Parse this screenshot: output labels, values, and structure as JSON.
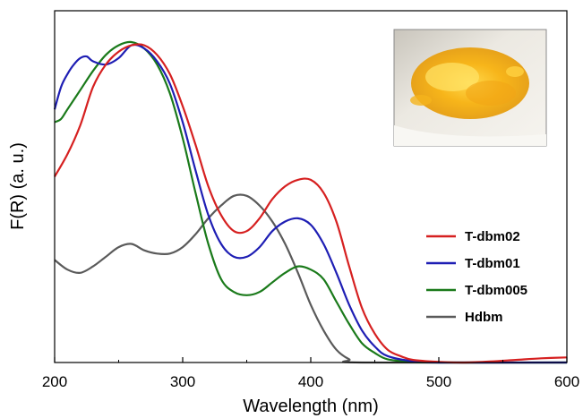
{
  "chart_data": {
    "type": "line",
    "title": "",
    "xlabel": "Wavelength (nm)",
    "ylabel": "F(R)  (a. u.)",
    "xlim": [
      200,
      600
    ],
    "ylim": [
      0,
      1
    ],
    "x_ticks": [
      "200",
      "300",
      "400",
      "500",
      "600"
    ],
    "y_ticks_shown": false,
    "grid": false,
    "legend_position": "right",
    "inset": "photo-of-yellow-crystals",
    "series": [
      {
        "name": "T-dbm02",
        "color": "#d62020",
        "points": [
          [
            200,
            0.58
          ],
          [
            210,
            0.65
          ],
          [
            220,
            0.74
          ],
          [
            230,
            0.86
          ],
          [
            240,
            0.93
          ],
          [
            250,
            0.97
          ],
          [
            260,
            0.99
          ],
          [
            270,
            0.99
          ],
          [
            280,
            0.96
          ],
          [
            290,
            0.9
          ],
          [
            300,
            0.8
          ],
          [
            310,
            0.68
          ],
          [
            320,
            0.55
          ],
          [
            330,
            0.46
          ],
          [
            340,
            0.41
          ],
          [
            350,
            0.41
          ],
          [
            360,
            0.45
          ],
          [
            370,
            0.51
          ],
          [
            380,
            0.55
          ],
          [
            390,
            0.57
          ],
          [
            400,
            0.57
          ],
          [
            410,
            0.53
          ],
          [
            420,
            0.44
          ],
          [
            430,
            0.3
          ],
          [
            440,
            0.17
          ],
          [
            450,
            0.09
          ],
          [
            460,
            0.04
          ],
          [
            470,
            0.02
          ],
          [
            480,
            0.008
          ],
          [
            500,
            0.002
          ],
          [
            520,
            0.0
          ],
          [
            540,
            0.003
          ],
          [
            560,
            0.008
          ],
          [
            580,
            0.013
          ],
          [
            600,
            0.016
          ]
        ]
      },
      {
        "name": "T-dbm01",
        "color": "#1e1eb4",
        "points": [
          [
            200,
            0.79
          ],
          [
            205,
            0.86
          ],
          [
            210,
            0.9
          ],
          [
            215,
            0.93
          ],
          [
            220,
            0.95
          ],
          [
            225,
            0.955
          ],
          [
            230,
            0.94
          ],
          [
            240,
            0.93
          ],
          [
            250,
            0.95
          ],
          [
            260,
            0.99
          ],
          [
            270,
            0.98
          ],
          [
            280,
            0.94
          ],
          [
            290,
            0.87
          ],
          [
            300,
            0.75
          ],
          [
            310,
            0.6
          ],
          [
            320,
            0.46
          ],
          [
            330,
            0.37
          ],
          [
            340,
            0.33
          ],
          [
            350,
            0.33
          ],
          [
            360,
            0.36
          ],
          [
            370,
            0.41
          ],
          [
            380,
            0.44
          ],
          [
            390,
            0.45
          ],
          [
            400,
            0.43
          ],
          [
            410,
            0.37
          ],
          [
            420,
            0.28
          ],
          [
            430,
            0.18
          ],
          [
            440,
            0.1
          ],
          [
            450,
            0.05
          ],
          [
            460,
            0.02
          ],
          [
            480,
            0.004
          ],
          [
            500,
            0.0
          ],
          [
            520,
            0.0
          ],
          [
            600,
            0.0
          ]
        ]
      },
      {
        "name": "T-dbm005",
        "color": "#1a7a1a",
        "points": [
          [
            200,
            0.75
          ],
          [
            205,
            0.76
          ],
          [
            210,
            0.79
          ],
          [
            220,
            0.85
          ],
          [
            230,
            0.91
          ],
          [
            240,
            0.96
          ],
          [
            250,
            0.99
          ],
          [
            260,
            1.0
          ],
          [
            270,
            0.98
          ],
          [
            280,
            0.93
          ],
          [
            290,
            0.84
          ],
          [
            300,
            0.7
          ],
          [
            310,
            0.53
          ],
          [
            320,
            0.37
          ],
          [
            330,
            0.26
          ],
          [
            340,
            0.22
          ],
          [
            350,
            0.21
          ],
          [
            360,
            0.22
          ],
          [
            370,
            0.25
          ],
          [
            380,
            0.28
          ],
          [
            390,
            0.3
          ],
          [
            400,
            0.29
          ],
          [
            410,
            0.26
          ],
          [
            420,
            0.19
          ],
          [
            430,
            0.12
          ],
          [
            440,
            0.06
          ],
          [
            450,
            0.03
          ],
          [
            460,
            0.01
          ],
          [
            480,
            0.002
          ],
          [
            500,
            0.0
          ],
          [
            600,
            0.0
          ]
        ]
      },
      {
        "name": "Hdbm",
        "color": "#5a5a5a",
        "points": [
          [
            200,
            0.32
          ],
          [
            210,
            0.29
          ],
          [
            220,
            0.28
          ],
          [
            230,
            0.3
          ],
          [
            240,
            0.33
          ],
          [
            250,
            0.36
          ],
          [
            260,
            0.37
          ],
          [
            270,
            0.35
          ],
          [
            280,
            0.34
          ],
          [
            290,
            0.34
          ],
          [
            300,
            0.36
          ],
          [
            310,
            0.4
          ],
          [
            320,
            0.45
          ],
          [
            330,
            0.49
          ],
          [
            340,
            0.52
          ],
          [
            350,
            0.52
          ],
          [
            360,
            0.49
          ],
          [
            370,
            0.44
          ],
          [
            380,
            0.37
          ],
          [
            390,
            0.28
          ],
          [
            400,
            0.18
          ],
          [
            410,
            0.1
          ],
          [
            420,
            0.04
          ],
          [
            430,
            0.01
          ],
          [
            440,
            0.0
          ],
          [
            600,
            0.0
          ]
        ]
      }
    ]
  }
}
